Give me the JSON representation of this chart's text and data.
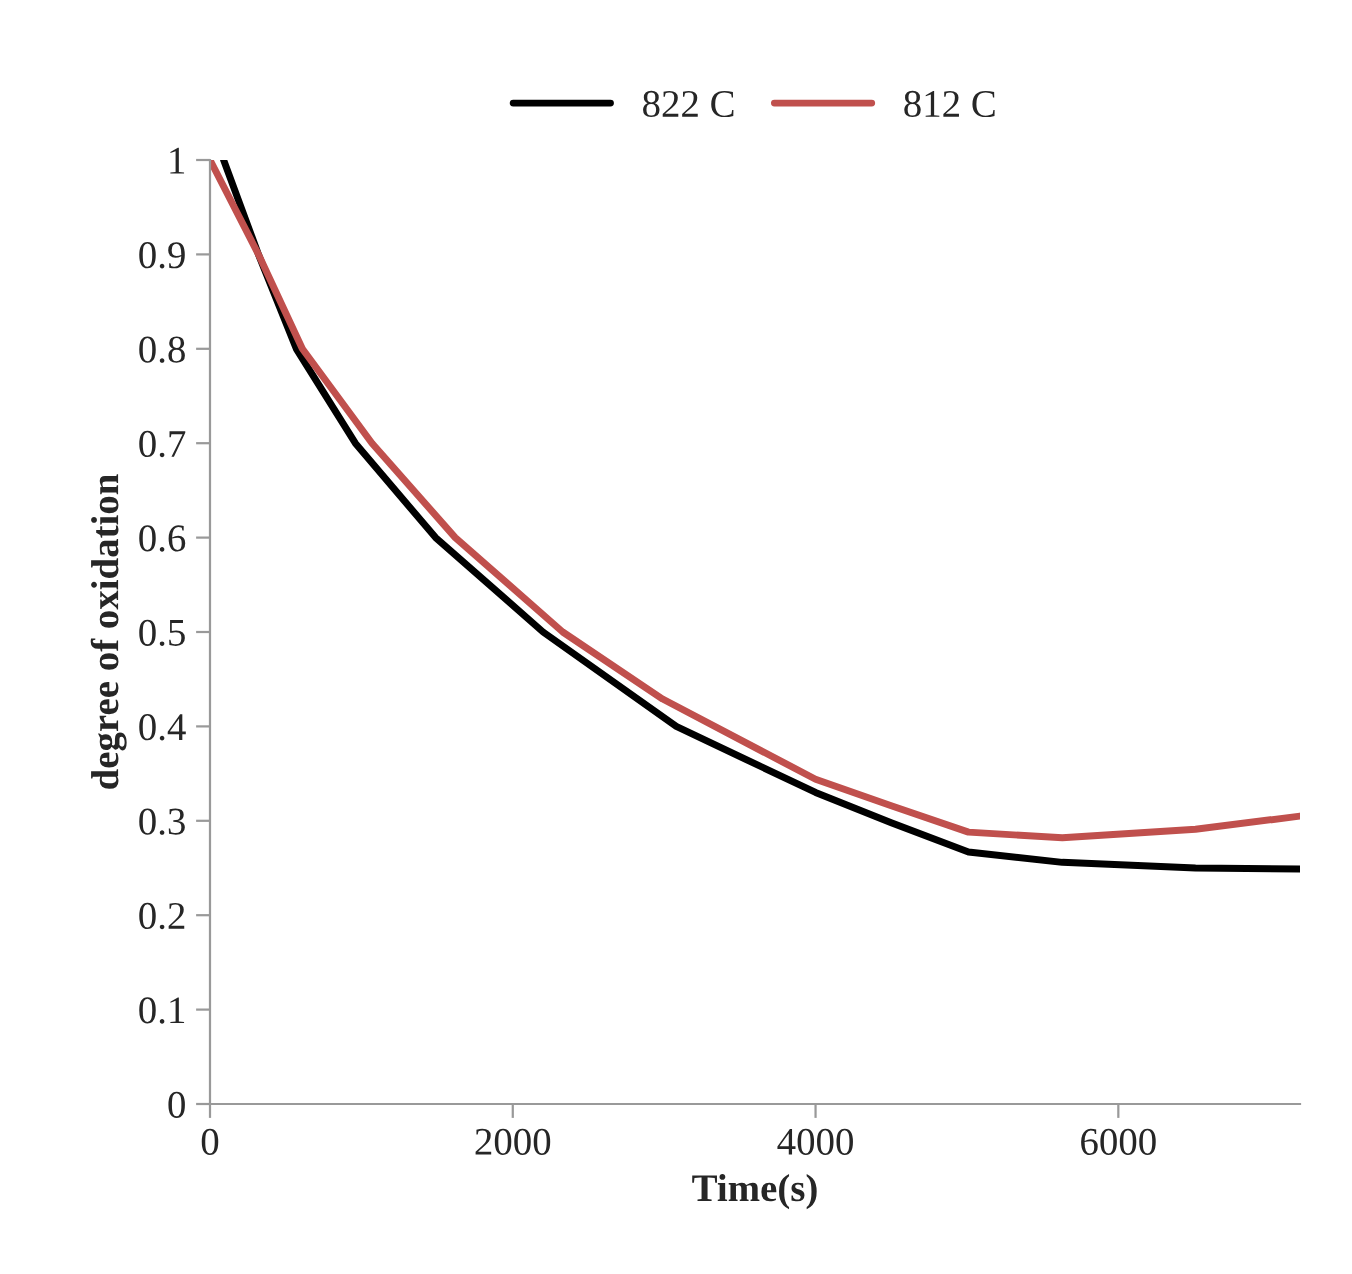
{
  "chart_data": {
    "type": "line",
    "xlabel": "Time(s)",
    "ylabel": "degree of oxidation",
    "xlim": [
      0,
      7200
    ],
    "xticks": [
      0,
      2000,
      4000,
      6000
    ],
    "ylim": [
      0,
      1
    ],
    "yticks": [
      0,
      0.1,
      0.2,
      0.3,
      0.4,
      0.5,
      0.6,
      0.7,
      0.8,
      0.9,
      1
    ],
    "grid": false,
    "legend": "top",
    "marker": "none",
    "line_style": "solid",
    "series": [
      {
        "name": "822 C",
        "color": "#000000",
        "x": [
          90,
          320,
          570,
          960,
          1490,
          2200,
          3080,
          4000,
          4500,
          5010,
          5630,
          6510,
          7200
        ],
        "values": [
          1.0,
          0.9,
          0.8,
          0.7,
          0.6,
          0.5,
          0.4,
          0.33,
          0.298,
          0.267,
          0.256,
          0.25,
          0.249
        ]
      },
      {
        "name": "812 C",
        "color": "#c0504d",
        "x": [
          0,
          320,
          610,
          1070,
          1620,
          2330,
          2990,
          4000,
          4500,
          5010,
          5630,
          6510,
          7200
        ],
        "values": [
          1.0,
          0.9,
          0.8,
          0.7,
          0.6,
          0.5,
          0.429,
          0.344,
          0.316,
          0.288,
          0.282,
          0.291,
          0.305
        ]
      }
    ]
  }
}
